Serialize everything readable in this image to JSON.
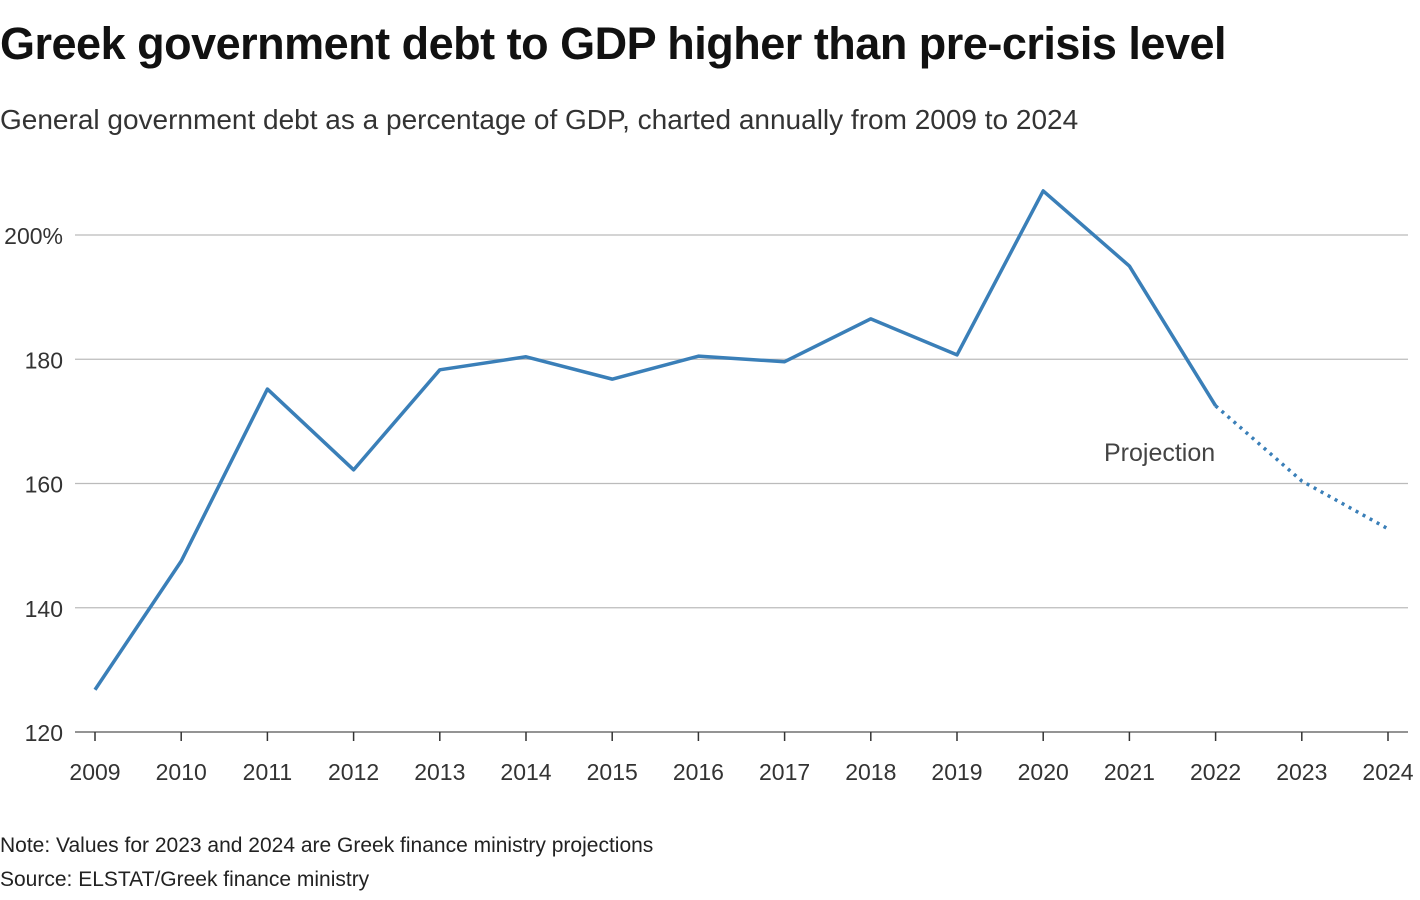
{
  "chart_data": {
    "type": "line",
    "title": "Greek government debt to GDP higher than pre-crisis level",
    "subtitle": "General government debt as a percentage of GDP, charted annually from 2009 to 2024",
    "xlabel": "",
    "ylabel": "",
    "x": [
      "2009",
      "2010",
      "2011",
      "2012",
      "2013",
      "2014",
      "2015",
      "2016",
      "2017",
      "2018",
      "2019",
      "2020",
      "2021",
      "2022",
      "2023",
      "2024"
    ],
    "values": [
      126.8,
      147.5,
      175.2,
      162.2,
      178.3,
      180.4,
      176.8,
      180.5,
      179.6,
      186.5,
      180.7,
      207.1,
      195.0,
      172.5,
      160.4,
      152.7
    ],
    "projection_start_index": 13,
    "ylim": [
      120,
      210
    ],
    "yticks": [
      120,
      140,
      160,
      180,
      200
    ],
    "ytick_labels": [
      "120",
      "140",
      "160",
      "180",
      "200%"
    ],
    "grid": true,
    "annotation": "Projection",
    "line_color": "#3a7fb8"
  },
  "footer": {
    "note": "Note: Values for 2023 and 2024 are Greek finance ministry projections",
    "source": "Source: ELSTAT/Greek finance ministry"
  }
}
